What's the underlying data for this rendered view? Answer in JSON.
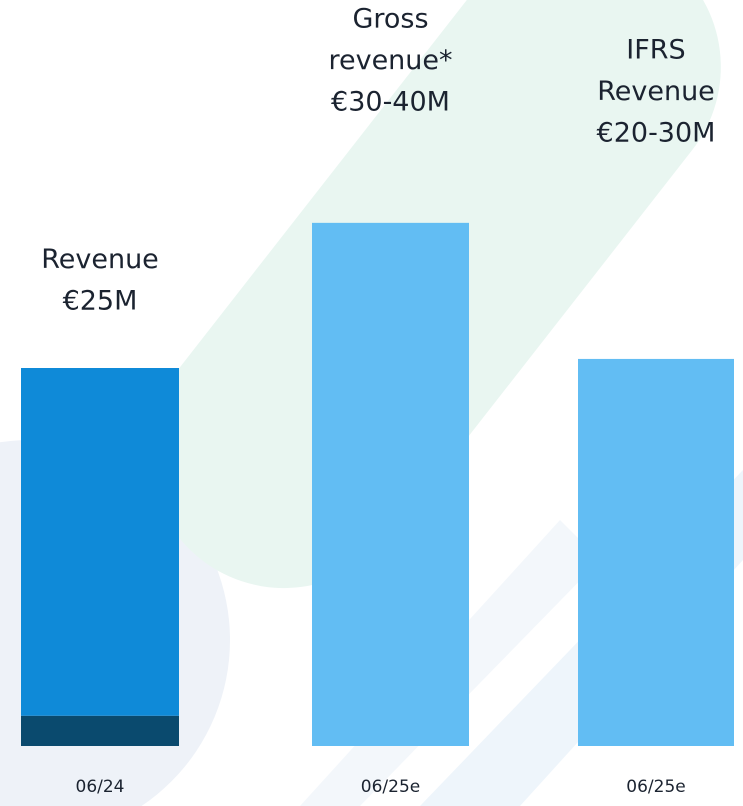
{
  "chart_data": {
    "type": "bar",
    "categories": [
      "06/24",
      "06/25e",
      "06/25e"
    ],
    "annotations": [
      [
        "Revenue",
        "€25M"
      ],
      [
        "Gross",
        "revenue*",
        "€30-40M"
      ],
      [
        "IFRS",
        "Revenue",
        "€20-30M"
      ]
    ],
    "series": [
      {
        "color": "#0a4a6e",
        "values": [
          2,
          null,
          null
        ]
      },
      {
        "color": "#0f8ad8",
        "values": [
          23,
          null,
          null
        ]
      },
      {
        "color": "#62bdf3",
        "values": [
          null,
          34.6,
          25.6
        ]
      }
    ]
  }
}
